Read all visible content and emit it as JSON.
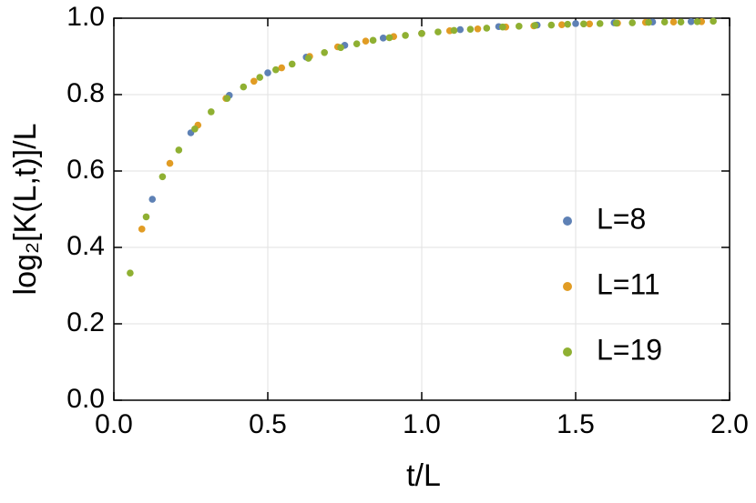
{
  "chart_data": {
    "type": "scatter",
    "xlabel": "t/L",
    "ylabel": "log₂[K(L,t)]/L",
    "xlim": [
      0,
      2
    ],
    "ylim": [
      0,
      1
    ],
    "xticks": [
      {
        "value": 0,
        "label": "0.0"
      },
      {
        "value": 0.5,
        "label": "0.5"
      },
      {
        "value": 1,
        "label": "1.0"
      },
      {
        "value": 1.5,
        "label": "1.5"
      },
      {
        "value": 2,
        "label": "2.0"
      }
    ],
    "yticks": [
      {
        "value": 0,
        "label": "0.0"
      },
      {
        "value": 0.2,
        "label": "0.2"
      },
      {
        "value": 0.4,
        "label": "0.4"
      },
      {
        "value": 0.6,
        "label": "0.6"
      },
      {
        "value": 0.8,
        "label": "0.8"
      },
      {
        "value": 1,
        "label": "1.0"
      }
    ],
    "grid": true,
    "series": [
      {
        "name": "L=8",
        "color": "#5e81b5",
        "x": [
          0.125,
          0.25,
          0.375,
          0.5,
          0.625,
          0.75,
          0.875,
          1.0,
          1.125,
          1.25,
          1.375,
          1.5,
          1.625,
          1.75,
          1.875
        ],
        "values": [
          0.526,
          0.7,
          0.798,
          0.857,
          0.898,
          0.929,
          0.948,
          0.96,
          0.97,
          0.978,
          0.982,
          0.986,
          0.988,
          0.99,
          0.991
        ]
      },
      {
        "name": "L=11",
        "color": "#e19c24",
        "x": [
          0.091,
          0.182,
          0.273,
          0.364,
          0.455,
          0.545,
          0.636,
          0.727,
          0.818,
          0.909,
          1.0,
          1.091,
          1.182,
          1.273,
          1.364,
          1.455,
          1.545,
          1.636,
          1.727,
          1.818,
          1.909
        ],
        "values": [
          0.448,
          0.62,
          0.72,
          0.79,
          0.835,
          0.87,
          0.9,
          0.925,
          0.94,
          0.952,
          0.96,
          0.967,
          0.972,
          0.977,
          0.98,
          0.983,
          0.985,
          0.987,
          0.989,
          0.99,
          0.991
        ]
      },
      {
        "name": "L=19",
        "color": "#8fb032",
        "x": [
          0.053,
          0.105,
          0.158,
          0.211,
          0.263,
          0.316,
          0.368,
          0.421,
          0.474,
          0.526,
          0.579,
          0.632,
          0.684,
          0.737,
          0.789,
          0.842,
          0.895,
          0.947,
          1.0,
          1.053,
          1.105,
          1.158,
          1.211,
          1.263,
          1.316,
          1.368,
          1.421,
          1.474,
          1.526,
          1.579,
          1.632,
          1.684,
          1.737,
          1.789,
          1.842,
          1.895,
          1.947
        ],
        "values": [
          0.333,
          0.48,
          0.585,
          0.655,
          0.71,
          0.755,
          0.79,
          0.82,
          0.845,
          0.865,
          0.88,
          0.895,
          0.91,
          0.923,
          0.933,
          0.942,
          0.949,
          0.955,
          0.96,
          0.964,
          0.968,
          0.971,
          0.974,
          0.977,
          0.979,
          0.981,
          0.982,
          0.984,
          0.985,
          0.986,
          0.987,
          0.988,
          0.989,
          0.99,
          0.99,
          0.991,
          0.992
        ]
      }
    ]
  }
}
